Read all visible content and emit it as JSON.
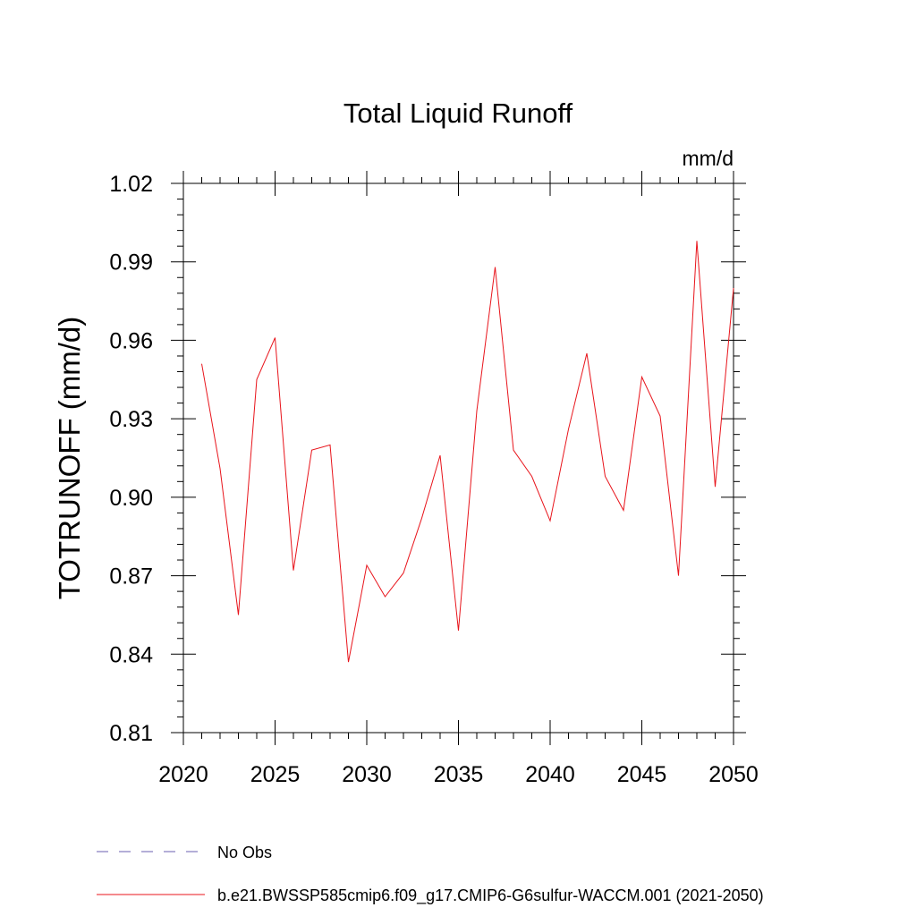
{
  "chart_data": {
    "type": "line",
    "title": "Total Liquid Runoff",
    "units_label": "mm/d",
    "xlabel": "",
    "ylabel": "TOTRUNOFF  (mm/d)",
    "xlim": [
      2020,
      2050
    ],
    "ylim": [
      0.81,
      1.02
    ],
    "xticks": [
      2020,
      2025,
      2030,
      2035,
      2040,
      2045,
      2050
    ],
    "xtick_labels": [
      "2020",
      "2025",
      "2030",
      "2035",
      "2040",
      "2045",
      "2050"
    ],
    "yticks": [
      0.81,
      0.84,
      0.87,
      0.9,
      0.93,
      0.96,
      0.99,
      1.02
    ],
    "ytick_labels": [
      "0.81",
      "0.84",
      "0.87",
      "0.90",
      "0.93",
      "0.96",
      "0.99",
      "1.02"
    ],
    "grid": false,
    "legend_position": "bottom",
    "series": [
      {
        "name": "b.e21.BWSSP585cmip6.f09_g17.CMIP6-G6sulfur-WACCM.001 (2021-2050)",
        "color": "#e8141b",
        "style": "solid",
        "x": [
          2021,
          2022,
          2023,
          2024,
          2025,
          2026,
          2027,
          2028,
          2029,
          2030,
          2031,
          2032,
          2033,
          2034,
          2035,
          2036,
          2037,
          2038,
          2039,
          2040,
          2041,
          2042,
          2043,
          2044,
          2045,
          2046,
          2047,
          2048,
          2049,
          2050
        ],
        "y": [
          0.951,
          0.911,
          0.855,
          0.945,
          0.961,
          0.872,
          0.918,
          0.92,
          0.837,
          0.874,
          0.862,
          0.871,
          0.892,
          0.916,
          0.849,
          0.933,
          0.988,
          0.918,
          0.908,
          0.891,
          0.926,
          0.955,
          0.908,
          0.895,
          0.946,
          0.931,
          0.87,
          0.998,
          0.904,
          0.98
        ]
      }
    ],
    "legend": [
      {
        "label": "No Obs",
        "color": "#6a5fb0",
        "style": "dashed"
      },
      {
        "label": "b.e21.BWSSP585cmip6.f09_g17.CMIP6-G6sulfur-WACCM.001 (2021-2050)",
        "color": "#e8141b",
        "style": "solid"
      }
    ]
  }
}
